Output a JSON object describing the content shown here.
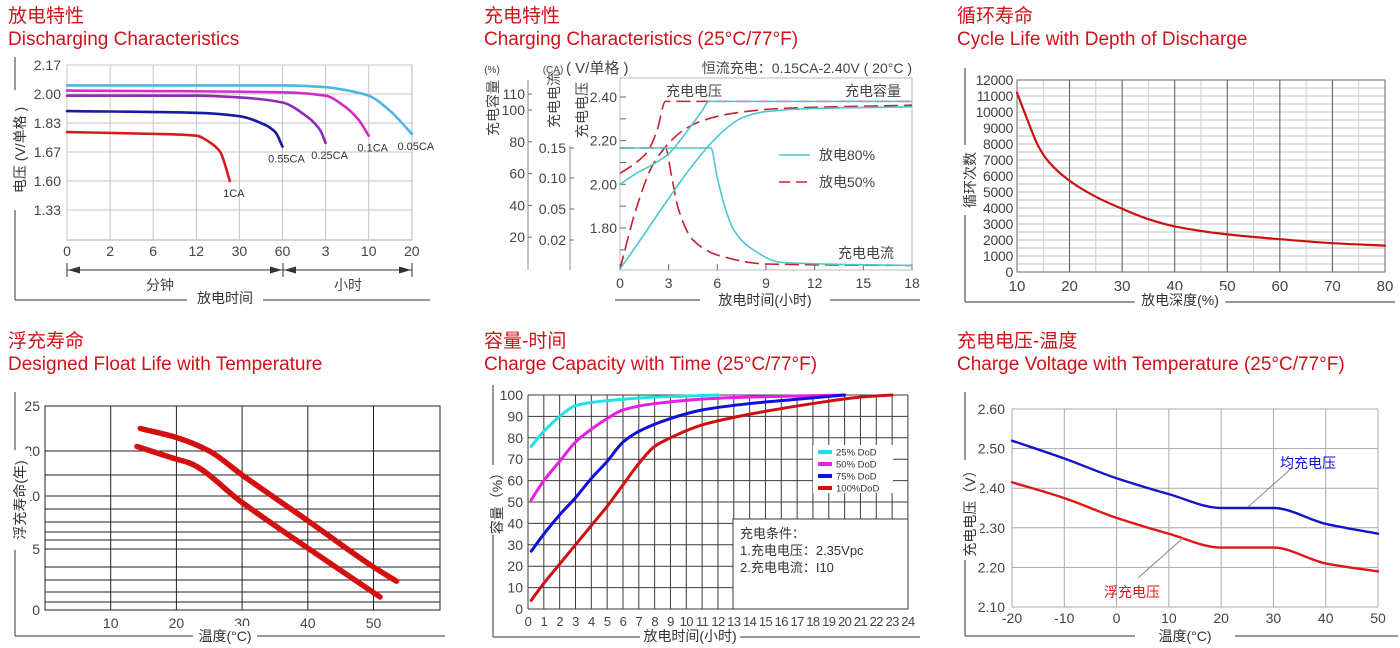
{
  "chart_data": [
    {
      "type": "line",
      "title": "放电特性",
      "subtitle": "Discharging Characteristics",
      "ylabel": "电压 (V/单格 )",
      "xlabel": "放电时间",
      "x_ticks": [
        "0",
        "2",
        "6",
        "12",
        "30",
        "60",
        "3",
        "10",
        "20"
      ],
      "x_tick_minutes": [
        0,
        2,
        6,
        12,
        30,
        60,
        180,
        600,
        1200
      ],
      "x_unit_groups": [
        "分钟",
        "小时"
      ],
      "y_ticks": [
        "2.17",
        "2.00",
        "1.83",
        "1.67",
        "1.60",
        "1.33"
      ],
      "grid": true,
      "series": [
        {
          "name": "1CA",
          "color": "#d51c1c",
          "x_minutes": [
            0,
            6,
            12,
            18,
            22,
            26
          ],
          "y": [
            1.78,
            1.77,
            1.76,
            1.72,
            1.67,
            1.6
          ]
        },
        {
          "name": "0.55CA",
          "color": "#1a1aa0",
          "x_minutes": [
            0,
            12,
            30,
            45,
            55,
            60
          ],
          "y": [
            1.9,
            1.89,
            1.87,
            1.83,
            1.78,
            1.7
          ]
        },
        {
          "name": "0.25CA",
          "color": "#8e2bb5",
          "x_minutes": [
            0,
            12,
            30,
            60,
            120,
            165,
            180
          ],
          "y": [
            1.99,
            1.99,
            1.98,
            1.95,
            1.88,
            1.79,
            1.72
          ]
        },
        {
          "name": "0.1CA",
          "color": "#d42ac8",
          "x_minutes": [
            0,
            60,
            180,
            360,
            500,
            600
          ],
          "y": [
            2.02,
            2.01,
            1.99,
            1.93,
            1.85,
            1.76
          ]
        },
        {
          "name": "0.05CA",
          "color": "#4ab8e8",
          "x_minutes": [
            0,
            60,
            180,
            400,
            600,
            900,
            1200
          ],
          "y": [
            2.05,
            2.05,
            2.04,
            2.02,
            1.99,
            1.9,
            1.77
          ]
        }
      ]
    },
    {
      "type": "line",
      "title": "充电特性",
      "subtitle": "Charging Characteristics (25°C/77°F)",
      "condition": "恒流充电：0.15CA-2.40V ( 20°C )",
      "xlabel": "放电时间(小时)",
      "xlim": [
        0,
        18
      ],
      "x_ticks": [
        "0",
        "3",
        "6",
        "9",
        "12",
        "15",
        "18"
      ],
      "axes": {
        "capacity": {
          "label": "充电容量",
          "unit": "(%)",
          "ticks": [
            "110",
            "100",
            "80",
            "60",
            "40",
            "20"
          ]
        },
        "current": {
          "label": "充电电流",
          "unit": "(CA)",
          "ticks": [
            "0.15",
            "0.10",
            "0.05",
            "0.02"
          ]
        },
        "voltage": {
          "label": "充电电压",
          "unit": "( V/单格 )",
          "ticks": [
            "2.40",
            "2.20",
            "2.00",
            "1.80"
          ]
        }
      },
      "curve_labels": {
        "voltage": "充电电压",
        "capacity": "充电容量",
        "current": "充电电流"
      },
      "legend": [
        {
          "name": "放电80%",
          "color": "#4cc7d0",
          "style": "solid"
        },
        {
          "name": "放电50%",
          "color": "#c8202a",
          "style": "dashed"
        }
      ],
      "series": [
        {
          "legend": 1,
          "quantity": "current",
          "x": [
            0,
            2.8,
            3.2,
            3.6,
            4.5,
            6,
            9,
            18
          ],
          "y": [
            0.15,
            0.15,
            0.1,
            0.05,
            0.02,
            0.01,
            0.004,
            0.003
          ]
        },
        {
          "legend": 1,
          "quantity": "voltage",
          "x": [
            0,
            1,
            1.7,
            2.3,
            2.8,
            18
          ],
          "y": [
            2.05,
            2.1,
            2.15,
            2.25,
            2.38,
            2.38
          ]
        },
        {
          "legend": 1,
          "quantity": "capacity",
          "x": [
            0,
            1,
            2,
            3,
            4,
            5,
            7,
            10,
            18
          ],
          "y": [
            0,
            38,
            65,
            79,
            88,
            93,
            98,
            101,
            103
          ]
        },
        {
          "legend": 0,
          "quantity": "voltage",
          "x": [
            0,
            1,
            2,
            3,
            4,
            5,
            5.5,
            18
          ],
          "y": [
            2.0,
            2.05,
            2.09,
            2.14,
            2.23,
            2.33,
            2.38,
            2.38
          ]
        },
        {
          "legend": 0,
          "quantity": "capacity",
          "x": [
            0,
            5.6,
            6.5,
            7.5,
            9,
            12,
            18
          ],
          "y": [
            0,
            79,
            88,
            95,
            99,
            101,
            102
          ]
        },
        {
          "legend": 0,
          "quantity": "current",
          "x": [
            0,
            5.6,
            6,
            6.5,
            7,
            8,
            10,
            18
          ],
          "y": [
            0.15,
            0.15,
            0.1,
            0.05,
            0.03,
            0.015,
            0.005,
            0.003
          ]
        }
      ]
    },
    {
      "type": "line",
      "title": "循环寿命",
      "subtitle": "Cycle Life with Depth of Discharge",
      "ylabel": "循环次数",
      "xlabel": "放电深度(%)",
      "xlim": [
        10,
        80
      ],
      "ylim": [
        0,
        12000
      ],
      "x_ticks": [
        "10",
        "20",
        "30",
        "40",
        "50",
        "60",
        "70",
        "80"
      ],
      "y_ticks": [
        "0",
        "1000",
        "2000",
        "3000",
        "4000",
        "5000",
        "6000",
        "7000",
        "8000",
        "9000",
        "10000",
        "11000",
        "12000"
      ],
      "grid": true,
      "series": [
        {
          "color": "#cc1111",
          "x": [
            10,
            12,
            14,
            16,
            20,
            25,
            30,
            35,
            40,
            50,
            60,
            70,
            80
          ],
          "y": [
            11200,
            9500,
            7900,
            6900,
            5700,
            4700,
            3950,
            3300,
            2850,
            2350,
            2050,
            1800,
            1650
          ]
        }
      ]
    },
    {
      "type": "line",
      "title": "浮充寿命",
      "subtitle": "Designed Float Life with Temperature",
      "ylabel": "浮充寿命(年)",
      "xlabel": "温度(°C)",
      "x_ticks": [
        "10",
        "20",
        "30",
        "40",
        "50"
      ],
      "y_ticks": [
        "25",
        "20",
        "10",
        "5",
        "0"
      ],
      "y_gridlines": [
        25,
        20,
        15,
        10,
        9,
        8,
        7,
        6,
        5,
        4,
        3,
        2,
        1,
        0
      ],
      "grid": true,
      "series": [
        {
          "color": "#d40f0f",
          "x": [
            14.5,
            20,
            25,
            30,
            40,
            50,
            53.5
          ],
          "y": [
            22.5,
            21.5,
            20,
            15,
            8.1,
            4,
            2.9
          ]
        },
        {
          "color": "#d40f0f",
          "x": [
            14,
            20,
            22,
            30,
            40,
            51
          ],
          "y": [
            20.5,
            18.3,
            17.5,
            9.5,
            5.1,
            1.5
          ]
        }
      ]
    },
    {
      "type": "line",
      "title": "容量-时间",
      "subtitle": "Charge Capacity with Time (25°C/77°F)",
      "ylabel": "容量（%）",
      "xlabel": "放电时间(小时)",
      "xlim": [
        0,
        24
      ],
      "ylim": [
        0,
        100
      ],
      "x_ticks": [
        "0",
        "1",
        "2",
        "3",
        "4",
        "5",
        "6",
        "7",
        "8",
        "9",
        "10",
        "11",
        "12",
        "13",
        "14",
        "15",
        "16",
        "17",
        "18",
        "19",
        "20",
        "21",
        "22",
        "23",
        "24"
      ],
      "y_ticks": [
        "0",
        "10",
        "20",
        "30",
        "40",
        "50",
        "60",
        "70",
        "80",
        "90",
        "100"
      ],
      "grid": true,
      "legend_placement": "right",
      "annotation": [
        "充电条件：",
        "1.充电电压：2.35Vpc",
        "2.充电电流：I10"
      ],
      "series": [
        {
          "name": "25%  DoD",
          "color": "#22e0ea",
          "x": [
            0.2,
            1,
            2,
            3,
            4,
            6,
            8,
            10,
            12
          ],
          "y": [
            76,
            83,
            90,
            95,
            96.5,
            98,
            99,
            99.5,
            100
          ]
        },
        {
          "name": "50%  DoD",
          "color": "#e81ee0",
          "x": [
            0.2,
            1,
            2,
            3,
            4,
            5,
            6,
            8,
            12,
            20
          ],
          "y": [
            51,
            60,
            69,
            78,
            84,
            89,
            93,
            96,
            98.5,
            100
          ]
        },
        {
          "name": "75%  DoD",
          "color": "#1010d8",
          "x": [
            0.2,
            1,
            2,
            3,
            4,
            5,
            6,
            7,
            9,
            11,
            14,
            17,
            20
          ],
          "y": [
            27,
            35,
            44,
            52,
            61,
            69,
            78,
            83,
            89,
            93,
            96,
            98,
            100
          ]
        },
        {
          "name": "100%DoD",
          "color": "#d01010",
          "x": [
            0.2,
            1,
            2,
            3,
            4,
            5,
            6,
            7,
            8,
            9,
            11,
            14,
            18,
            21,
            23
          ],
          "y": [
            4,
            12,
            21,
            30,
            39,
            48,
            58,
            68,
            76,
            80,
            86,
            91,
            96,
            99,
            100
          ]
        }
      ]
    },
    {
      "type": "line",
      "title": "充电电压-温度",
      "subtitle": "Charge Voltage with Temperature (25°C/77°F)",
      "ylabel": "充电电压（V）",
      "xlabel": "温度(°C)",
      "xlim": [
        -20,
        50
      ],
      "ylim": [
        2.1,
        2.6
      ],
      "x_ticks": [
        "-20",
        "-10",
        "0",
        "10",
        "20",
        "30",
        "40",
        "50"
      ],
      "y_ticks": [
        "2.60",
        "2.50",
        "2.40",
        "2.30",
        "2.20",
        "2.10"
      ],
      "grid": true,
      "series": [
        {
          "name": "均充电压",
          "color": "#1414cc",
          "x": [
            -20,
            -10,
            0,
            10,
            20,
            30,
            40,
            50
          ],
          "y": [
            2.52,
            2.475,
            2.425,
            2.385,
            2.35,
            2.35,
            2.31,
            2.285
          ]
        },
        {
          "name": "浮充电压",
          "color": "#e01515",
          "x": [
            -20,
            -10,
            0,
            10,
            20,
            30,
            40,
            50
          ],
          "y": [
            2.415,
            2.375,
            2.325,
            2.285,
            2.25,
            2.25,
            2.21,
            2.19
          ]
        }
      ]
    }
  ]
}
